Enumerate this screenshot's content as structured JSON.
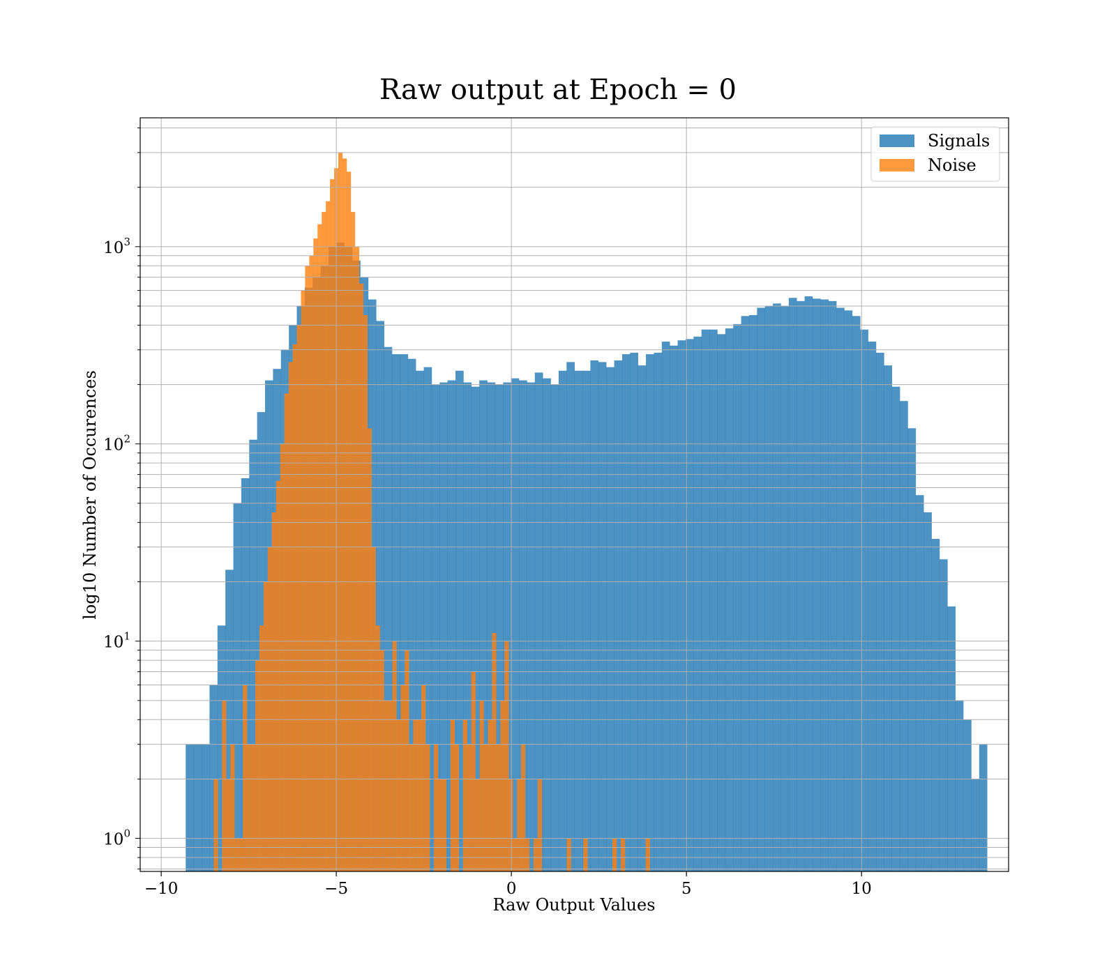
{
  "chart_data": {
    "type": "bar",
    "title": "Raw output at Epoch = 0",
    "xlabel": "Raw Output Values",
    "ylabel": "log10 Number of Occurences",
    "xlim": [
      -10.6,
      14.2
    ],
    "ylim": [
      0.68,
      4500
    ],
    "yscale": "log",
    "grid": true,
    "legend": "top-right",
    "x_ticks": [
      {
        "value": -10,
        "label": "−10"
      },
      {
        "value": -5,
        "label": "−5"
      },
      {
        "value": 0,
        "label": "0"
      },
      {
        "value": 5,
        "label": "5"
      },
      {
        "value": 10,
        "label": "10"
      }
    ],
    "y_ticks": [
      {
        "value": 1,
        "base": "10",
        "exp": "0"
      },
      {
        "value": 10,
        "base": "10",
        "exp": "1"
      },
      {
        "value": 100,
        "base": "10",
        "exp": "2"
      },
      {
        "value": 1000,
        "base": "10",
        "exp": "3"
      }
    ],
    "colors": {
      "signals": "#1f77b4",
      "noise": "#ff7f0e",
      "grid": "#b0b0b0"
    },
    "series": [
      {
        "name": "Signals",
        "bin_start": -9.3,
        "bin_width": 0.2266,
        "values": [
          3,
          3,
          3,
          6,
          12,
          23,
          50,
          67,
          105,
          145,
          210,
          240,
          300,
          400,
          500,
          620,
          700,
          800,
          1000,
          1050,
          1000,
          850,
          700,
          540,
          420,
          310,
          285,
          285,
          270,
          235,
          245,
          200,
          205,
          210,
          235,
          205,
          195,
          210,
          205,
          200,
          205,
          215,
          210,
          205,
          230,
          215,
          200,
          235,
          260,
          235,
          235,
          265,
          260,
          245,
          265,
          285,
          290,
          250,
          285,
          290,
          330,
          315,
          335,
          340,
          350,
          380,
          380,
          360,
          385,
          405,
          445,
          450,
          490,
          500,
          515,
          500,
          550,
          530,
          560,
          545,
          540,
          530,
          490,
          475,
          445,
          380,
          330,
          290,
          250,
          195,
          165,
          120,
          55,
          45,
          33,
          26,
          15,
          5,
          4,
          2,
          3
        ]
      },
      {
        "name": "Noise",
        "bin_start": -8.5,
        "bin_width": 0.1186,
        "values": [
          2,
          0,
          5,
          2,
          3,
          1,
          1,
          6,
          3,
          3,
          8,
          12,
          20,
          30,
          45,
          65,
          100,
          180,
          260,
          320,
          400,
          600,
          800,
          900,
          1100,
          1300,
          1500,
          1700,
          2200,
          2500,
          3000,
          2800,
          2400,
          1500,
          1000,
          650,
          450,
          120,
          30,
          12,
          9,
          5,
          5,
          10,
          4,
          6,
          9,
          3,
          4,
          4,
          6,
          3,
          0,
          3,
          2,
          2,
          0,
          4,
          3,
          0,
          4,
          3,
          7,
          2,
          5,
          3,
          4,
          11,
          3,
          5,
          10,
          2,
          1,
          2,
          3,
          1,
          0,
          1,
          2,
          0,
          0,
          0,
          0,
          0,
          0,
          1,
          0,
          0,
          0,
          1,
          0,
          0,
          0,
          0,
          0,
          0,
          1,
          0,
          1,
          0,
          0,
          0,
          0,
          0,
          1
        ]
      }
    ]
  }
}
